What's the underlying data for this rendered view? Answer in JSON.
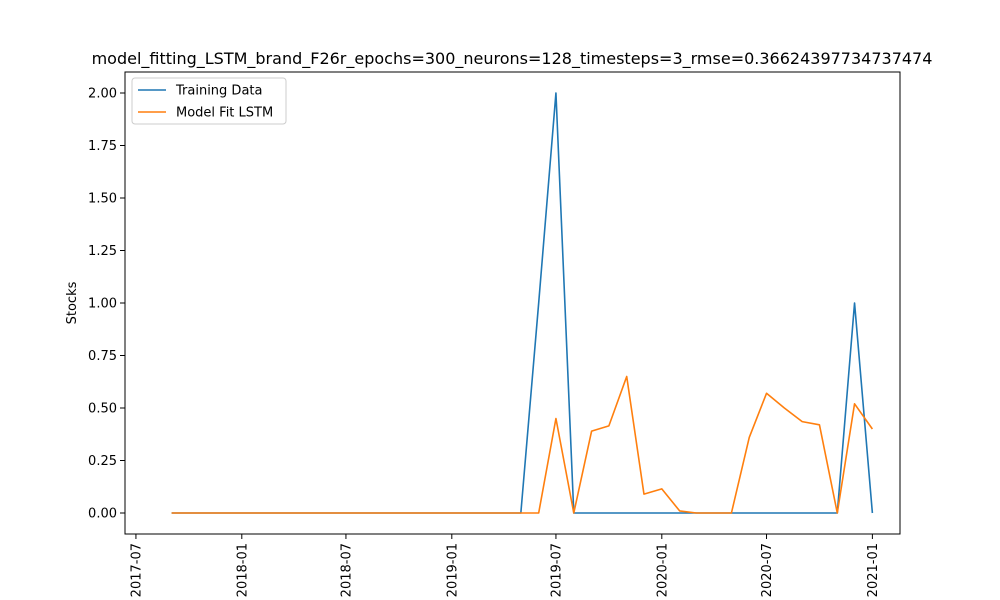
{
  "chart_data": {
    "type": "line",
    "title": "model_fitting_LSTM_brand_F26r_epochs=300_neurons=128_timesteps=3_rmse=0.36624397734737474",
    "xlabel": "",
    "ylabel": "Stocks",
    "xlim": [
      "2017-06-12",
      "2021-02-18"
    ],
    "ylim": [
      -0.1,
      2.1
    ],
    "x_ticks": [
      "2017-07",
      "2018-01",
      "2018-07",
      "2019-01",
      "2019-07",
      "2020-01",
      "2020-07",
      "2021-01"
    ],
    "y_ticks": [
      "0.00",
      "0.25",
      "0.50",
      "0.75",
      "1.00",
      "1.25",
      "1.50",
      "1.75",
      "2.00"
    ],
    "grid": false,
    "legend_position": "top-left",
    "series": [
      {
        "name": "Training Data",
        "color": "#1f77b4",
        "points": [
          [
            "2017-09-01",
            0
          ],
          [
            "2019-05-01",
            0
          ],
          [
            "2019-06-01",
            1
          ],
          [
            "2019-07-01",
            2
          ],
          [
            "2019-08-01",
            0
          ],
          [
            "2020-11-01",
            0
          ],
          [
            "2020-12-01",
            1
          ],
          [
            "2021-01-01",
            0
          ]
        ]
      },
      {
        "name": "Model Fit LSTM",
        "color": "#ff7f0e",
        "points": [
          [
            "2017-09-01",
            0
          ],
          [
            "2019-06-01",
            0
          ],
          [
            "2019-07-01",
            0.45
          ],
          [
            "2019-08-01",
            0
          ],
          [
            "2019-09-01",
            0.39
          ],
          [
            "2019-10-01",
            0.415
          ],
          [
            "2019-11-01",
            0.65
          ],
          [
            "2019-12-01",
            0.09
          ],
          [
            "2020-01-01",
            0.115
          ],
          [
            "2020-02-01",
            0.01
          ],
          [
            "2020-03-01",
            0
          ],
          [
            "2020-05-01",
            0
          ],
          [
            "2020-06-01",
            0.36
          ],
          [
            "2020-07-01",
            0.57
          ],
          [
            "2020-08-01",
            0.5
          ],
          [
            "2020-09-01",
            0.435
          ],
          [
            "2020-10-01",
            0.42
          ],
          [
            "2020-11-01",
            0
          ],
          [
            "2020-12-01",
            0.52
          ],
          [
            "2021-01-01",
            0.4
          ]
        ]
      }
    ]
  }
}
